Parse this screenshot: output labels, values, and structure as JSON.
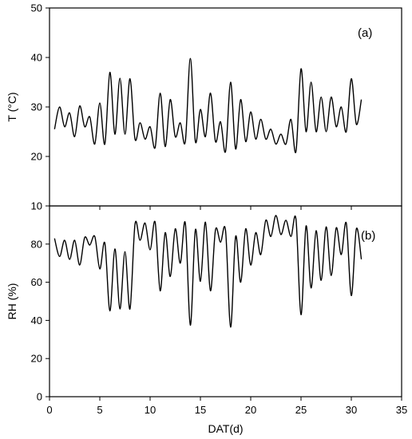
{
  "chart_data": [
    {
      "type": "line",
      "panel_label": "(a)",
      "ylabel": "T (°C)",
      "ylim": [
        10,
        50
      ],
      "yticks": [
        "10",
        "20",
        "30",
        "40",
        "50"
      ],
      "xlim": [
        0,
        35
      ],
      "xticks": [
        "0",
        "5",
        "10",
        "15",
        "20",
        "25",
        "30",
        "35"
      ],
      "show_xtick_labels": false,
      "line_color": "#000000",
      "grid": false,
      "series": [
        {
          "x": [
            0.5,
            1.0,
            1.5,
            2.0,
            2.5,
            3.0,
            3.5,
            4.0,
            4.5,
            5.0,
            5.5,
            6.0,
            6.5,
            7.0,
            7.5,
            8.0,
            8.5,
            9.0,
            9.5,
            10.0,
            10.5,
            11.0,
            11.5,
            12.0,
            12.5,
            13.0,
            13.5,
            14.0,
            14.5,
            15.0,
            15.5,
            16.0,
            16.5,
            17.0,
            17.5,
            18.0,
            18.5,
            19.0,
            19.5,
            20.0,
            20.5,
            21.0,
            21.5,
            22.0,
            22.5,
            23.0,
            23.5,
            24.0,
            24.5,
            25.0,
            25.5,
            26.0,
            26.5,
            27.0,
            27.5,
            28.0,
            28.5,
            29.0,
            29.5,
            30.0,
            30.5,
            31.0
          ],
          "y": [
            25.5,
            30.0,
            26.0,
            28.8,
            24.0,
            30.2,
            26.0,
            28.0,
            22.5,
            30.8,
            22.5,
            37.0,
            24.5,
            35.8,
            24.5,
            35.7,
            23.5,
            26.8,
            23.5,
            26.0,
            21.8,
            32.8,
            22.0,
            31.5,
            24.0,
            26.8,
            23.0,
            39.8,
            23.0,
            29.5,
            24.0,
            32.8,
            23.0,
            27.0,
            21.0,
            35.0,
            21.5,
            31.5,
            23.0,
            29.0,
            23.5,
            27.5,
            23.5,
            25.5,
            22.5,
            24.5,
            22.5,
            27.5,
            21.0,
            37.7,
            25.0,
            35.0,
            25.0,
            32.0,
            25.0,
            32.0,
            26.0,
            30.0,
            25.0,
            35.7,
            26.5,
            31.5
          ]
        }
      ]
    },
    {
      "type": "line",
      "panel_label": "(b)",
      "ylabel": "RH (%)",
      "xlabel": "DAT(d)",
      "ylim": [
        0,
        100
      ],
      "yticks": [
        "0",
        "20",
        "40",
        "60",
        "80"
      ],
      "xlim": [
        0,
        35
      ],
      "xticks": [
        "0",
        "5",
        "10",
        "15",
        "20",
        "25",
        "30",
        "35"
      ],
      "show_xtick_labels": true,
      "line_color": "#000000",
      "grid": false,
      "series": [
        {
          "x": [
            0.5,
            1.0,
            1.5,
            2.0,
            2.5,
            3.0,
            3.5,
            4.0,
            4.5,
            5.0,
            5.5,
            6.0,
            6.5,
            7.0,
            7.5,
            8.0,
            8.5,
            9.0,
            9.5,
            10.0,
            10.5,
            11.0,
            11.5,
            12.0,
            12.5,
            13.0,
            13.5,
            14.0,
            14.5,
            15.0,
            15.5,
            16.0,
            16.5,
            17.0,
            17.5,
            18.0,
            18.5,
            19.0,
            19.5,
            20.0,
            20.5,
            21.0,
            21.5,
            22.0,
            22.5,
            23.0,
            23.5,
            24.0,
            24.5,
            25.0,
            25.5,
            26.0,
            26.5,
            27.0,
            27.5,
            28.0,
            28.5,
            29.0,
            29.5,
            30.0,
            30.5,
            31.0
          ],
          "y": [
            83.0,
            73.5,
            82.0,
            72.0,
            82.0,
            69.0,
            83.5,
            79.5,
            84.0,
            67.0,
            80.5,
            45.0,
            77.5,
            46.0,
            76.0,
            46.0,
            90.5,
            82.0,
            91.0,
            77.0,
            91.5,
            55.5,
            86.0,
            63.0,
            88.0,
            70.0,
            91.0,
            37.5,
            87.5,
            60.5,
            91.5,
            55.5,
            87.5,
            81.0,
            87.0,
            36.5,
            84.0,
            60.0,
            88.0,
            69.0,
            86.0,
            74.5,
            92.5,
            84.0,
            95.0,
            85.0,
            92.5,
            84.0,
            93.0,
            43.0,
            89.5,
            57.0,
            87.0,
            61.0,
            89.0,
            63.5,
            88.5,
            74.5,
            91.0,
            53.0,
            88.0,
            72.0
          ]
        }
      ]
    }
  ]
}
